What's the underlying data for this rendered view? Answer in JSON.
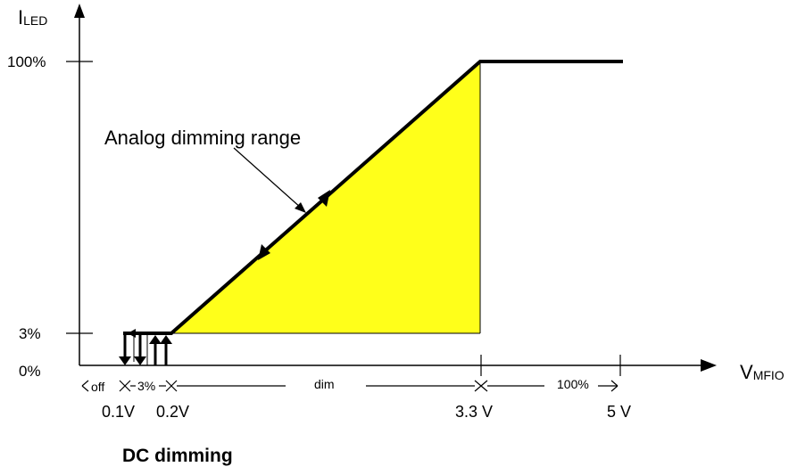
{
  "axes": {
    "y_label_main": "I",
    "y_label_sub": "LED",
    "x_label_main": "V",
    "x_label_sub": "MFIO",
    "y_ticks": [
      "100%",
      "3%",
      "0%"
    ],
    "x_ticks": [
      "0.1V",
      "0.2V",
      "3.3 V",
      "5 V"
    ]
  },
  "regions": {
    "off": "off",
    "dc": "3%",
    "dim": "dim",
    "full": "100%"
  },
  "annotation": "Analog dimming range",
  "caption": "DC dimming",
  "colors": {
    "fill": "#ffff1a",
    "line": "#000000"
  }
}
